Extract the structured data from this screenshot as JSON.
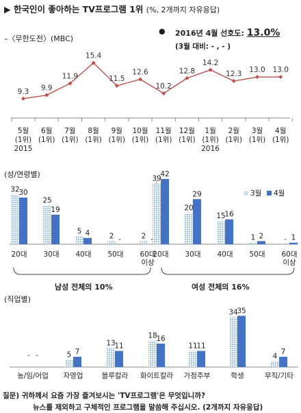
{
  "header": {
    "title": "▶ 한국인이 좋아하는 TV프로그램 1위",
    "subtitle": "(%, 2개까지 자유응답)"
  },
  "trend": {
    "series_label": "–〈무한도전〉(MBC)",
    "bullet": "●",
    "rank_text": "2016년 4월 선호도:",
    "rank_value": "13.0%",
    "change_text": "(3월 대비:  - , - )"
  },
  "sections": {
    "gender_age": "(성/연령별)",
    "occupation": "(직업별)",
    "male_total": "남성 전체의 10%",
    "female_total": "여성 전체의 16%"
  },
  "footer": {
    "line1": "질문) 귀하께서 요즘 가장 즐겨보시는 'TV프로그램'은 무엇입니까?",
    "line2": "뉴스를 제외하고 구체적인 프로그램을 말씀해 주십시오. (2개까지 자유응답)"
  },
  "colors": {
    "line": "#c0504d",
    "bar_prev": "#9dc3e6",
    "bar_curr": "#4472c4",
    "axis": "#888888"
  },
  "chart_data": [
    {
      "type": "line",
      "name": "trend",
      "categories": [
        "5월\n(1위)\n2015",
        "6월\n(1위)",
        "7월\n(1위)",
        "8월\n(1위)",
        "9월\n(1위)",
        "10월\n(1위)",
        "11월\n(1위)",
        "12월\n(1위)",
        "1월\n(1위)\n2016",
        "2월\n(1위)",
        "3월\n(1위)",
        "4월\n(1위)"
      ],
      "values": [
        9.3,
        9.9,
        11.9,
        15.4,
        11.5,
        12.6,
        10.2,
        12.8,
        14.2,
        12.3,
        13.0,
        13.0
      ],
      "value_labels": [
        "9.3",
        "9.9",
        "11.9",
        "15.4",
        "11.5",
        "12.6",
        "10.2",
        "12.8",
        "14.2",
        "12.3",
        "13.0",
        "13.0"
      ],
      "ylim": [
        6,
        17
      ]
    },
    {
      "type": "bar",
      "name": "gender_age",
      "groups": [
        "남성",
        "여성"
      ],
      "categories": [
        "20대",
        "30대",
        "40대",
        "50대",
        "60대\n이상",
        "20대",
        "30대",
        "40대",
        "50대",
        "60대\n이상"
      ],
      "legend": [
        "3월",
        "4월"
      ],
      "series": [
        {
          "name": "3월",
          "values": [
            32,
            25,
            5,
            2,
            2,
            39,
            20,
            15,
            1,
            null
          ],
          "labels": [
            "32",
            "25",
            "5",
            "2",
            "2",
            "39",
            "20",
            "15",
            "1",
            "-"
          ]
        },
        {
          "name": "4월",
          "values": [
            30,
            19,
            4,
            null,
            null,
            42,
            29,
            16,
            2,
            1
          ],
          "labels": [
            "30",
            "19",
            "4",
            "-",
            "-",
            "42",
            "29",
            "16",
            "2",
            "1"
          ]
        }
      ],
      "ylim": [
        0,
        45
      ]
    },
    {
      "type": "bar",
      "name": "occupation",
      "categories": [
        "농/임/어업",
        "자영업",
        "블루칼라",
        "화이트칼라",
        "가정주부",
        "학생",
        "무직/기타"
      ],
      "series": [
        {
          "name": "3월",
          "values": [
            null,
            5,
            13,
            18,
            11,
            34,
            4
          ],
          "labels": [
            "-",
            "5",
            "13",
            "18",
            "11",
            "34",
            "4"
          ]
        },
        {
          "name": "4월",
          "values": [
            null,
            7,
            11,
            16,
            11,
            35,
            7
          ],
          "labels": [
            "-",
            "7",
            "11",
            "16",
            "11",
            "35",
            "7"
          ]
        }
      ],
      "ylim": [
        0,
        45
      ]
    }
  ]
}
